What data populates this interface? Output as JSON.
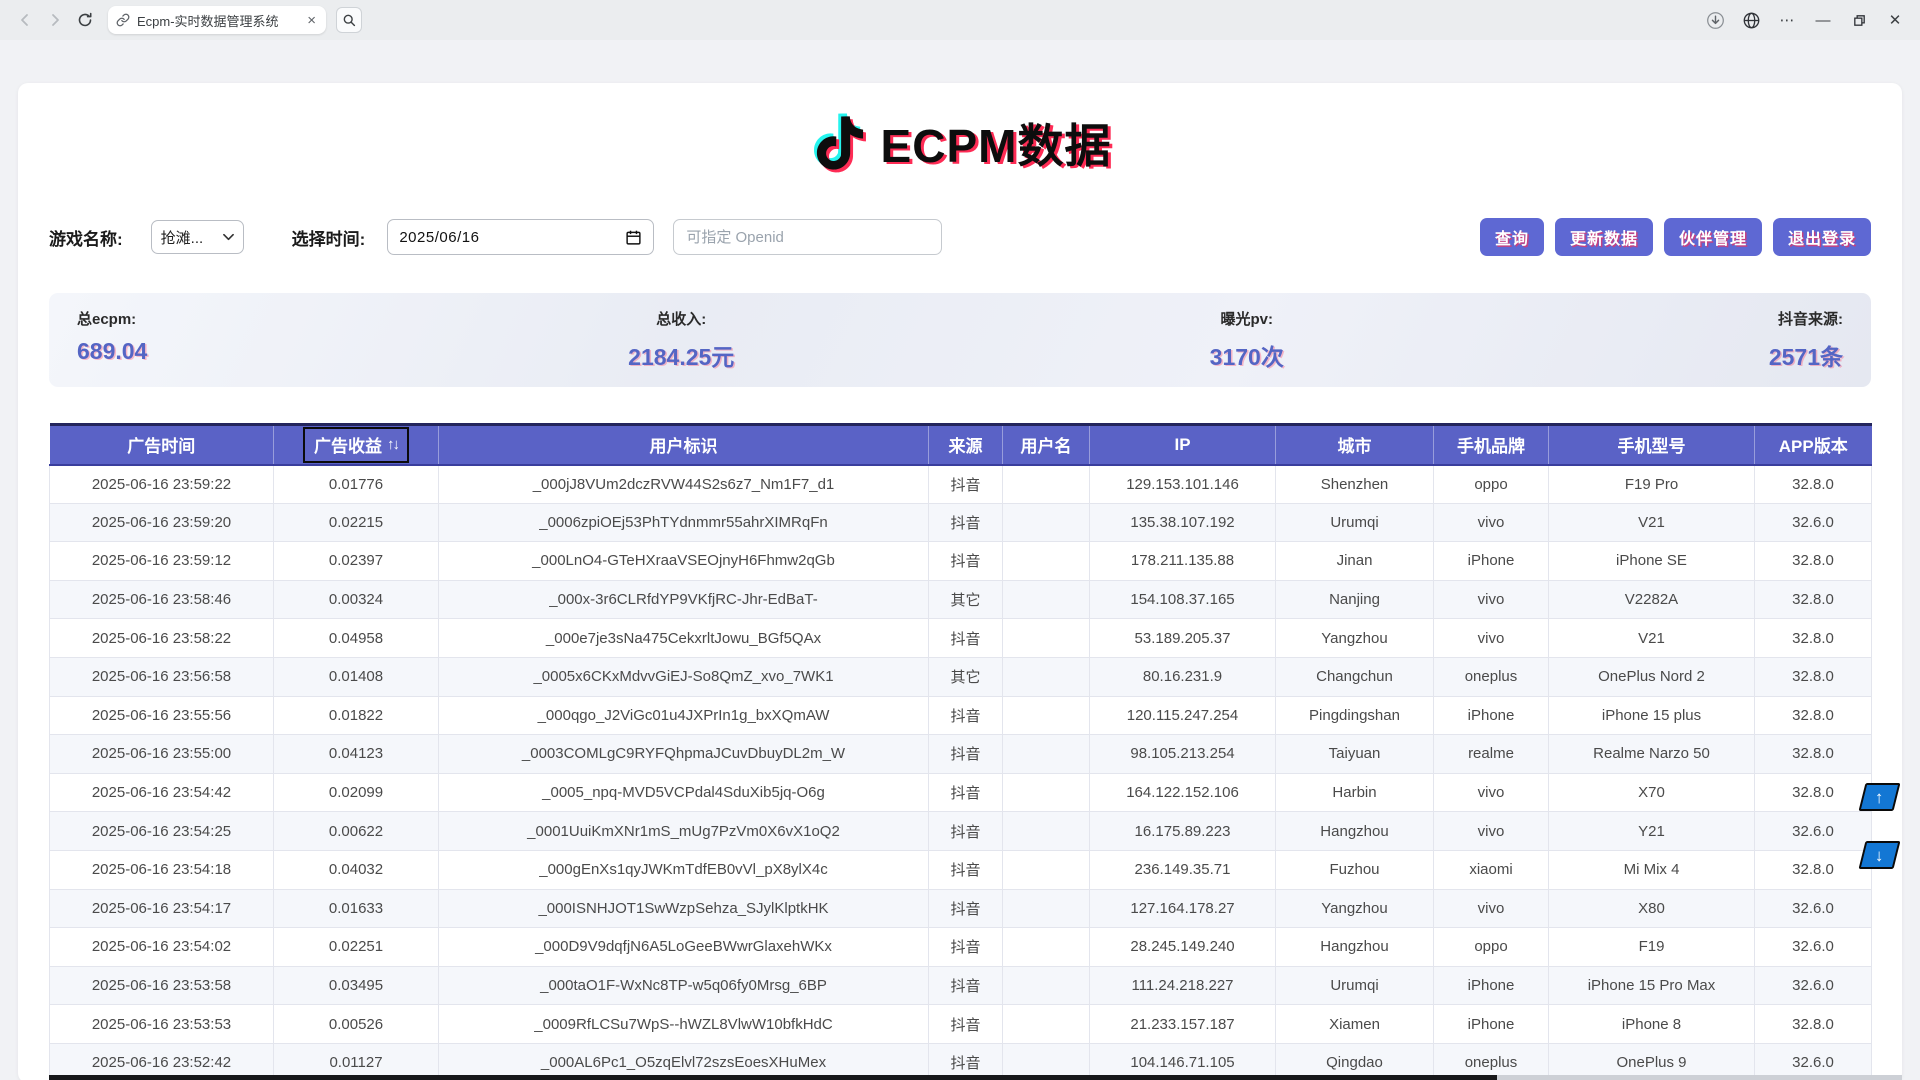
{
  "browser": {
    "tab_title": "Ecpm-实时数据管理系统",
    "tab_close": "×",
    "ellipsis": "⋯",
    "minimize": "—",
    "close": "✕"
  },
  "logo": {
    "title": "ECPM数据"
  },
  "filters": {
    "game_label": "游戏名称:",
    "game_value": "抢滩...",
    "time_label": "选择时间:",
    "date_value": "2025/06/16",
    "openid_placeholder": "可指定 Openid"
  },
  "actions": {
    "query": "查询",
    "update": "更新数据",
    "partners": "伙伴管理",
    "logout": "退出登录"
  },
  "stats": [
    {
      "label": "总ecpm:",
      "value": "689.04"
    },
    {
      "label": "总收入:",
      "value": "2184.25元"
    },
    {
      "label": "曝光pv:",
      "value": "3170次"
    },
    {
      "label": "抖音来源:",
      "value": "2571条"
    }
  ],
  "table": {
    "headers": [
      "广告时间",
      "广告收益",
      "用户标识",
      "来源",
      "用户名",
      "IP",
      "城市",
      "手机品牌",
      "手机型号",
      "APP版本"
    ],
    "sort_arrows": "↑↓",
    "rows": [
      [
        "2025-06-16 23:59:22",
        "0.01776",
        "_000jJ8VUm2dczRVW44S2s6z7_Nm1F7_d1",
        "抖音",
        "",
        "129.153.101.146",
        "Shenzhen",
        "oppo",
        "F19 Pro",
        "32.8.0"
      ],
      [
        "2025-06-16 23:59:20",
        "0.02215",
        "_0006zpiOEj53PhTYdnmmr55ahrXIMRqFn",
        "抖音",
        "",
        "135.38.107.192",
        "Urumqi",
        "vivo",
        "V21",
        "32.6.0"
      ],
      [
        "2025-06-16 23:59:12",
        "0.02397",
        "_000LnO4-GTeHXraaVSEOjnyH6Fhmw2qGb",
        "抖音",
        "",
        "178.211.135.88",
        "Jinan",
        "iPhone",
        "iPhone SE",
        "32.8.0"
      ],
      [
        "2025-06-16 23:58:46",
        "0.00324",
        "_000x-3r6CLRfdYP9VKfjRC-Jhr-EdBaT-",
        "其它",
        "",
        "154.108.37.165",
        "Nanjing",
        "vivo",
        "V2282A",
        "32.8.0"
      ],
      [
        "2025-06-16 23:58:22",
        "0.04958",
        "_000e7je3sNa475CekxrltJowu_BGf5QAx",
        "抖音",
        "",
        "53.189.205.37",
        "Yangzhou",
        "vivo",
        "V21",
        "32.8.0"
      ],
      [
        "2025-06-16 23:56:58",
        "0.01408",
        "_0005x6CKxMdvvGiEJ-So8QmZ_xvo_7WK1",
        "其它",
        "",
        "80.16.231.9",
        "Changchun",
        "oneplus",
        "OnePlus Nord 2",
        "32.8.0"
      ],
      [
        "2025-06-16 23:55:56",
        "0.01822",
        "_000qgo_J2ViGc01u4JXPrIn1g_bxXQmAW",
        "抖音",
        "",
        "120.115.247.254",
        "Pingdingshan",
        "iPhone",
        "iPhone 15 plus",
        "32.8.0"
      ],
      [
        "2025-06-16 23:55:00",
        "0.04123",
        "_0003COMLgC9RYFQhpmaJCuvDbuyDL2m_W",
        "抖音",
        "",
        "98.105.213.254",
        "Taiyuan",
        "realme",
        "Realme Narzo 50",
        "32.8.0"
      ],
      [
        "2025-06-16 23:54:42",
        "0.02099",
        "_0005_npq-MVD5VCPdal4SduXib5jq-O6g",
        "抖音",
        "",
        "164.122.152.106",
        "Harbin",
        "vivo",
        "X70",
        "32.8.0"
      ],
      [
        "2025-06-16 23:54:25",
        "0.00622",
        "_0001UuiKmXNr1mS_mUg7PzVm0X6vX1oQ2",
        "抖音",
        "",
        "16.175.89.223",
        "Hangzhou",
        "vivo",
        "Y21",
        "32.6.0"
      ],
      [
        "2025-06-16 23:54:18",
        "0.04032",
        "_000gEnXs1qyJWKmTdfEB0vVl_pX8ylX4c",
        "抖音",
        "",
        "236.149.35.71",
        "Fuzhou",
        "xiaomi",
        "Mi Mix 4",
        "32.8.0"
      ],
      [
        "2025-06-16 23:54:17",
        "0.01633",
        "_000ISNHJOT1SwWzpSehza_SJylKlptkHK",
        "抖音",
        "",
        "127.164.178.27",
        "Yangzhou",
        "vivo",
        "X80",
        "32.6.0"
      ],
      [
        "2025-06-16 23:54:02",
        "0.02251",
        "_000D9V9dqfjN6A5LoGeeBWwrGlaxehWKx",
        "抖音",
        "",
        "28.245.149.240",
        "Hangzhou",
        "oppo",
        "F19",
        "32.6.0"
      ],
      [
        "2025-06-16 23:53:58",
        "0.03495",
        "_000taO1F-WxNc8TP-w5q06fy0Mrsg_6BP",
        "抖音",
        "",
        "111.24.218.227",
        "Urumqi",
        "iPhone",
        "iPhone 15 Pro Max",
        "32.6.0"
      ],
      [
        "2025-06-16 23:53:53",
        "0.00526",
        "_0009RfLCSu7WpS--hWZL8VlwW10bfkHdC",
        "抖音",
        "",
        "21.233.157.187",
        "Xiamen",
        "iPhone",
        "iPhone 8",
        "32.8.0"
      ],
      [
        "2025-06-16 23:52:42",
        "0.01127",
        "_000AL6Pc1_O5zqElvl72szsEoesXHuMex",
        "抖音",
        "",
        "104.146.71.105",
        "Qingdao",
        "oneplus",
        "OnePlus 9",
        "32.6.0"
      ]
    ]
  },
  "float_buttons": {
    "up": "↑",
    "down": "↓"
  },
  "colors": {
    "accent": "#5a62c6",
    "accent-dark": "#3a3e9d",
    "button-bg": "#5e68d3",
    "stat-value": "#5465c4",
    "glitch-pink": "#fe2c55",
    "glitch-cyan": "#25f4ee",
    "float-blue": "#1377d4",
    "row-alt": "#f5f7fb"
  }
}
